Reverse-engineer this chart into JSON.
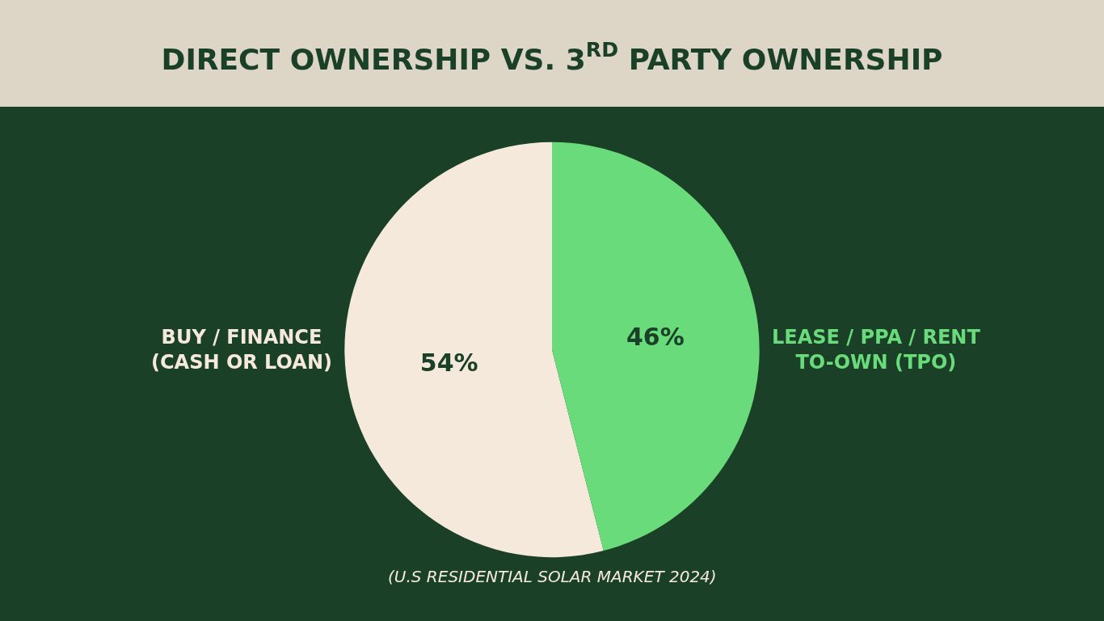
{
  "chart_data": {
    "type": "pie",
    "title": "DIRECT OWNERSHIP VS. 3$^{RD}$ PARTY OWNERSHIP",
    "categories": [
      "BUY / FINANCE (CASH OR LOAN)",
      "LEASE / PPA / RENT TO-OWN (TPO)"
    ],
    "values": [
      54,
      46
    ],
    "colors": [
      "#f5e9dc",
      "#6adb7a"
    ],
    "value_labels": [
      "54%",
      "46%"
    ],
    "annotations": [
      "(U.S RESIDENTIAL SOLAR MARKET 2024)"
    ],
    "legend": false
  }
}
